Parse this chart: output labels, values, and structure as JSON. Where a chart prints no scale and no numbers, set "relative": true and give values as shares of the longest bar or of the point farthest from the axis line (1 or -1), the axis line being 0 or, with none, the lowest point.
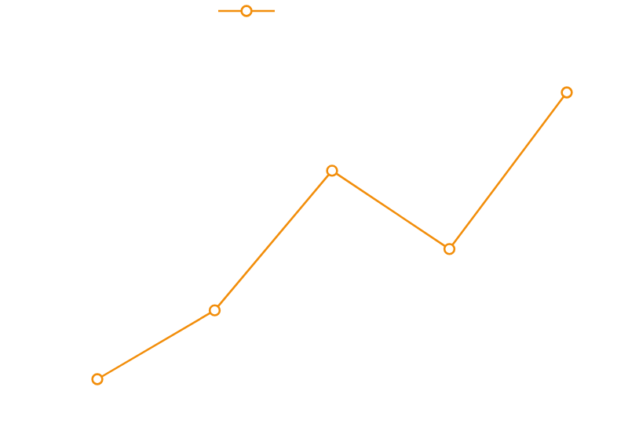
{
  "chart_data": {
    "type": "line",
    "relative": true,
    "categories": [
      null,
      null,
      null,
      null,
      null
    ],
    "series": [
      {
        "color": "#f28e0b",
        "values": [
          0,
          0.24,
          0.727,
          0.454,
          1
        ]
      }
    ],
    "marker": "circle",
    "line_style": "solid"
  }
}
